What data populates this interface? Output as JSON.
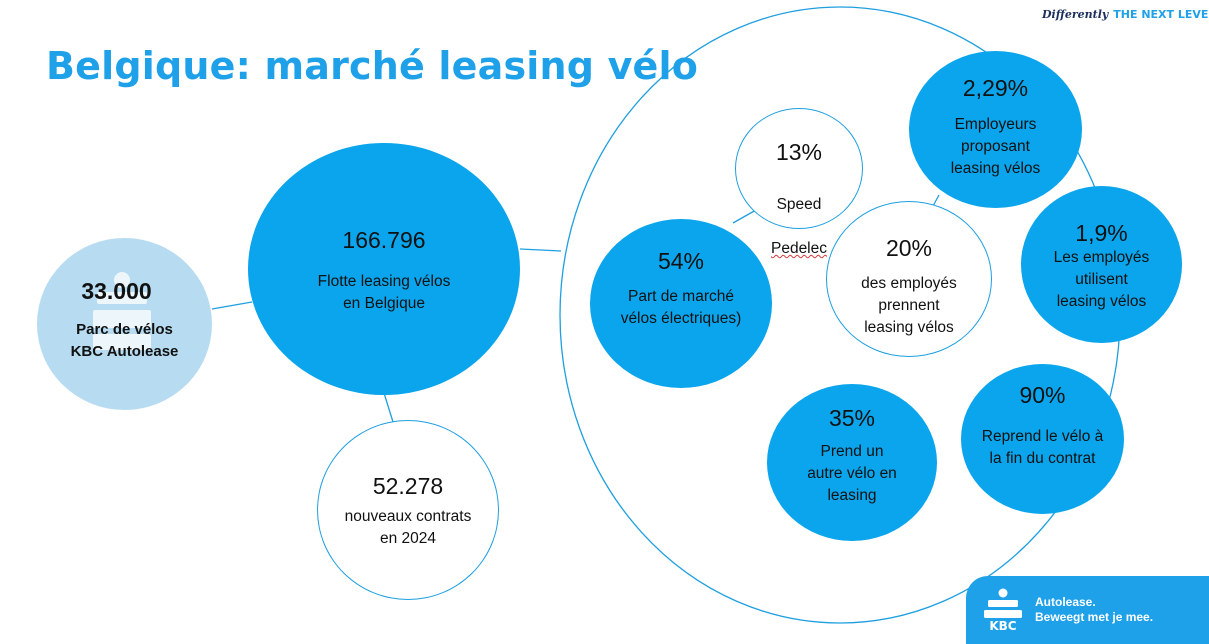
{
  "title": "Belgique: marché leasing vélo",
  "slogan": {
    "script": "Differently",
    "caps": "THE NEXT LEVEL"
  },
  "bubbles": {
    "kbc": {
      "value": "33.000",
      "label": "Parc de vélos\nKBC Autolease"
    },
    "fleet": {
      "value": "166.796",
      "label": "Flotte leasing vélos\nen Belgique"
    },
    "contracts": {
      "value": "52.278",
      "label": "nouveaux contrats\nen 2024"
    },
    "speed": {
      "value": "13%",
      "label_line1": "Speed",
      "label_line2": "Pedelec"
    },
    "electric": {
      "value": "54%",
      "label": "Part de marché\nvélos électriques)"
    },
    "employers": {
      "value": "2,29%",
      "label": "Employeurs\nproposant\nleasing vélos"
    },
    "take": {
      "value": "20%",
      "label": "des employés\nprennent\n leasing vélos"
    },
    "use": {
      "value": "1,9%",
      "label": "Les employés\nutilisent\nleasing vélos"
    },
    "another": {
      "value": "35%",
      "label": "Prend un\nautre vélo en\nleasing"
    },
    "buyback": {
      "value": "90%",
      "label": "Reprend le vélo à\nla fin du contrat"
    }
  },
  "footer": {
    "brand": "KBC",
    "line1": "Autolease.",
    "line2": "Beweegt met je mee."
  },
  "colors": {
    "accent": "#1ea1e8",
    "bubble_fill": "#0aa5ec",
    "light_fill": "#b7dcf1",
    "navy": "#1b2f5c"
  }
}
